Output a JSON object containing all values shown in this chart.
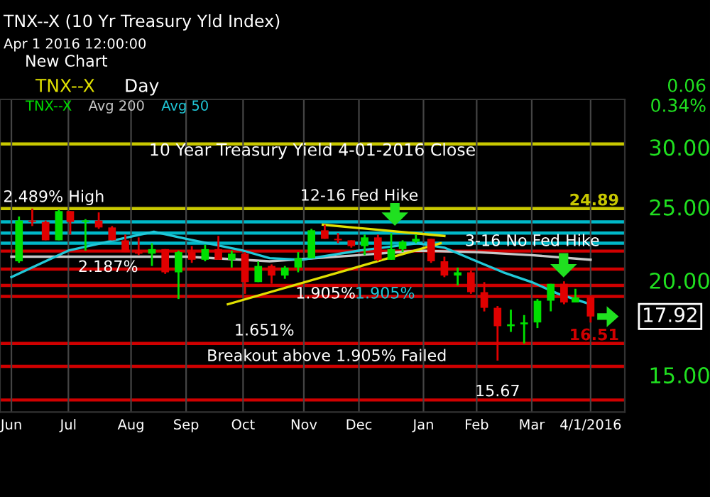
{
  "chart_data": {
    "type": "candlestick",
    "title": "TNX--X (10 Yr Treasury Yld Index)",
    "subtitle": "10 Year Treasury Yield 4-01-2016 Close",
    "series": [
      {
        "name": "TNX--X",
        "color": "#00e000",
        "x": [
          "2015-06-05",
          "2015-06-12",
          "2015-06-19",
          "2015-06-26",
          "2015-07-02",
          "2015-07-10",
          "2015-07-17",
          "2015-07-24",
          "2015-07-31",
          "2015-08-07",
          "2015-08-14",
          "2015-08-21",
          "2015-08-28",
          "2015-09-04",
          "2015-09-11",
          "2015-09-18",
          "2015-09-25",
          "2015-10-02",
          "2015-10-09",
          "2015-10-16",
          "2015-10-23",
          "2015-10-30",
          "2015-11-06",
          "2015-11-13",
          "2015-11-20",
          "2015-11-27",
          "2015-12-04",
          "2015-12-11",
          "2015-12-18",
          "2015-12-24",
          "2015-12-31",
          "2016-01-08",
          "2016-01-15",
          "2016-01-22",
          "2016-01-29",
          "2016-02-05",
          "2016-02-12",
          "2016-02-19",
          "2016-02-26",
          "2016-03-04",
          "2016-03-11",
          "2016-03-18",
          "2016-03-24",
          "2016-04-01"
        ],
        "ohlc": [
          [
            21.2,
            24.3,
            21.1,
            24.0
          ],
          [
            24.0,
            24.89,
            23.6,
            23.9
          ],
          [
            23.9,
            24.0,
            22.6,
            22.6
          ],
          [
            22.6,
            24.8,
            22.6,
            24.7
          ],
          [
            24.7,
            24.7,
            23.0,
            23.9
          ],
          [
            23.9,
            24.1,
            21.9,
            24.0
          ],
          [
            24.0,
            24.6,
            23.4,
            23.5
          ],
          [
            23.5,
            23.6,
            22.6,
            22.6
          ],
          [
            22.6,
            23.0,
            21.8,
            21.8
          ],
          [
            21.8,
            22.8,
            21.6,
            21.7
          ],
          [
            21.7,
            22.4,
            20.9,
            22.0
          ],
          [
            22.0,
            22.0,
            20.4,
            20.5
          ],
          [
            20.5,
            21.9,
            18.9,
            21.8
          ],
          [
            21.8,
            22.2,
            21.1,
            21.3
          ],
          [
            21.3,
            22.3,
            21.2,
            22.0
          ],
          [
            22.0,
            22.9,
            21.3,
            21.3
          ],
          [
            21.3,
            21.9,
            20.8,
            21.7
          ],
          [
            21.7,
            21.8,
            19.2,
            19.9
          ],
          [
            19.9,
            21.2,
            19.9,
            20.9
          ],
          [
            20.9,
            21.0,
            19.8,
            20.3
          ],
          [
            20.3,
            20.9,
            20.1,
            20.8
          ],
          [
            20.8,
            21.8,
            20.5,
            21.4
          ],
          [
            21.4,
            23.4,
            21.4,
            23.3
          ],
          [
            23.3,
            23.7,
            22.7,
            22.7
          ],
          [
            22.7,
            23.1,
            22.4,
            22.6
          ],
          [
            22.6,
            22.6,
            22.1,
            22.2
          ],
          [
            22.2,
            23.0,
            21.6,
            22.8
          ],
          [
            22.8,
            23.0,
            21.2,
            21.3
          ],
          [
            21.3,
            23.1,
            21.3,
            22.0
          ],
          [
            22.0,
            22.6,
            21.8,
            22.5
          ],
          [
            22.5,
            23.0,
            22.4,
            22.7
          ],
          [
            22.7,
            22.7,
            21.1,
            21.2
          ],
          [
            21.2,
            21.5,
            20.2,
            20.3
          ],
          [
            20.3,
            20.8,
            19.7,
            20.5
          ],
          [
            20.5,
            20.6,
            19.2,
            19.3
          ],
          [
            19.3,
            19.9,
            18.2,
            18.4
          ],
          [
            18.4,
            18.5,
            15.67,
            17.4
          ],
          [
            17.4,
            18.3,
            17.1,
            17.5
          ],
          [
            17.5,
            18.0,
            16.51,
            17.6
          ],
          [
            17.6,
            18.9,
            17.3,
            18.8
          ],
          [
            18.8,
            19.8,
            18.2,
            19.8
          ],
          [
            19.8,
            19.95,
            18.6,
            18.7
          ],
          [
            18.7,
            19.5,
            18.7,
            19.0
          ],
          [
            19.0,
            19.1,
            17.6,
            17.92
          ]
        ],
        "colors": [
          "#00e000",
          "#e00000",
          "#e00000",
          "#00e000",
          "#e00000",
          "#00e000",
          "#e00000",
          "#e00000",
          "#e00000",
          "#e00000",
          "#00e000",
          "#e00000",
          "#00e000",
          "#e00000",
          "#00e000",
          "#e00000",
          "#00e000",
          "#e00000",
          "#00e000",
          "#e00000",
          "#00e000",
          "#00e000",
          "#00e000",
          "#e00000",
          "#e00000",
          "#e00000",
          "#00e000",
          "#e00000",
          "#00e000",
          "#00e000",
          "#00e000",
          "#e00000",
          "#e00000",
          "#00e000",
          "#e00000",
          "#e00000",
          "#e00000",
          "#00e000",
          "#00e000",
          "#00e000",
          "#00e000",
          "#e00000",
          "#00e000",
          "#e00000"
        ]
      },
      {
        "name": "Avg 200",
        "type": "line",
        "color": "#c8c8c8",
        "x": [
          "2015-06-01",
          "2015-09-01",
          "2015-10-15",
          "2015-12-01",
          "2016-01-01",
          "2016-02-01",
          "2016-03-01",
          "2016-04-01"
        ],
        "values": [
          21.5,
          21.5,
          21.2,
          21.6,
          21.9,
          21.8,
          21.6,
          21.3
        ]
      },
      {
        "name": "Avg 50",
        "type": "line",
        "color": "#20c8d8",
        "x": [
          "2015-06-01",
          "2015-07-01",
          "2015-08-01",
          "2015-08-15",
          "2015-09-01",
          "2015-10-01",
          "2015-10-15",
          "2015-11-01",
          "2015-12-01",
          "2016-01-01",
          "2016-01-15",
          "2016-02-01",
          "2016-02-15",
          "2016-03-01",
          "2016-03-15",
          "2016-04-01"
        ],
        "values": [
          20.2,
          21.9,
          22.8,
          23.2,
          22.7,
          21.9,
          21.4,
          21.3,
          21.9,
          22.4,
          22.1,
          21.2,
          20.5,
          19.9,
          19.2,
          18.6
        ]
      },
      {
        "type": "line",
        "color": "#e0e000",
        "x": [
          "2015-09-23",
          "2016-01-13"
        ],
        "values": [
          18.6,
          22.4
        ]
      },
      {
        "type": "line",
        "color": "#e0e000",
        "x": [
          "2015-11-12",
          "2016-01-15"
        ],
        "values": [
          23.7,
          22.9
        ]
      }
    ],
    "ref_lines": [
      {
        "axis": "y",
        "value": 30.3,
        "label": null,
        "color": "#c8c800"
      },
      {
        "axis": "y",
        "value": 24.89,
        "label": "24.89",
        "color": "#c8c800"
      },
      {
        "axis": "y",
        "value": 23.9,
        "label": null,
        "color": "#00b8c8"
      },
      {
        "axis": "y",
        "value": 23.1,
        "label": null,
        "color": "#00b8c8"
      },
      {
        "axis": "y",
        "value": 22.4,
        "label": null,
        "color": "#00b8c8"
      },
      {
        "axis": "y",
        "value": 21.87,
        "label": null,
        "color": "#d00000"
      },
      {
        "axis": "y",
        "value": 20.7,
        "label": null,
        "color": "#d00000"
      },
      {
        "axis": "y",
        "value": 19.7,
        "label": null,
        "color": "#d00000"
      },
      {
        "axis": "y",
        "value": 19.05,
        "label": null,
        "color": "#d00000"
      },
      {
        "axis": "y",
        "value": 16.51,
        "label": "16.51",
        "color": "#d00000"
      },
      {
        "axis": "y",
        "value": 15.4,
        "label": null,
        "color": "#d00000"
      },
      {
        "axis": "y",
        "value": 13.9,
        "label": null,
        "color": "#d00000"
      }
    ],
    "annotations": [
      "Apr 1 2016 12:00:00",
      "New Chart",
      "TNX--X",
      "Day",
      "0.06",
      "0.34%",
      "2.489% High",
      "12-16 Fed Hike",
      "2.187%",
      "3-16 No Fed Hike",
      "1.905%",
      "1.905%",
      "1.651%",
      "Breakout above 1.905% Failed",
      {
        "text": "15.67",
        "x": "2016-02-12",
        "y": 15.67
      },
      {
        "text": "17.92",
        "x": "2016-04-01",
        "y": 17.92
      }
    ],
    "xlim": [
      "2015-05-26",
      "2016-04-19"
    ],
    "xticks": [
      {
        "value": "2015-06-01",
        "label": "Jun"
      },
      {
        "value": "2015-07-01",
        "label": "Jul"
      },
      {
        "value": "2015-08-03",
        "label": "Aug"
      },
      {
        "value": "2015-09-01",
        "label": "Sep"
      },
      {
        "value": "2015-10-01",
        "label": "Oct"
      },
      {
        "value": "2015-11-02",
        "label": "Nov"
      },
      {
        "value": "2015-12-01",
        "label": "Dec"
      },
      {
        "value": "2016-01-04",
        "label": "Jan"
      },
      {
        "value": "2016-02-01",
        "label": "Feb"
      },
      {
        "value": "2016-03-01",
        "label": "Mar"
      },
      {
        "value": "2016-04-01",
        "label": "4/1/2016"
      }
    ],
    "ylim": [
      13.4,
      34.7
    ],
    "yticks": [
      {
        "value": 15,
        "label": "15.00"
      },
      {
        "value": 20,
        "label": "20.00"
      },
      {
        "value": 25,
        "label": "25.00"
      },
      {
        "value": 30,
        "label": "30.00"
      }
    ],
    "log": true,
    "grid": "x",
    "legend": "top left"
  }
}
